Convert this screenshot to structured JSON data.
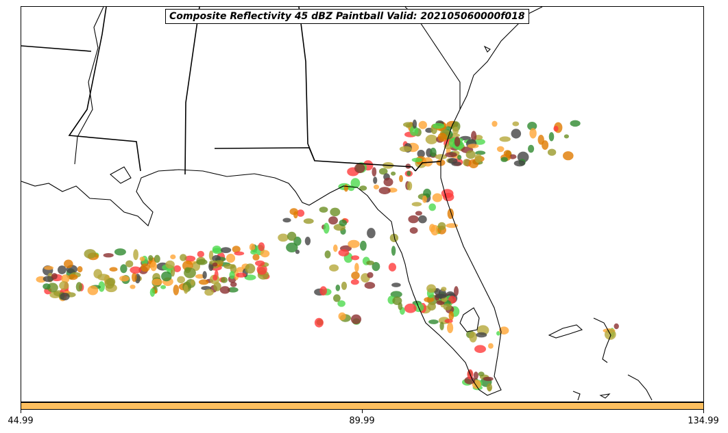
{
  "title": "Composite Reflectivity 45 dBZ Paintball Valid: 202105060000f018",
  "colorbar": {
    "color": "#fdbf5f",
    "ticks": [
      "44.99",
      "89.99",
      "134.99"
    ]
  },
  "map": {
    "features": [
      "state-boundaries",
      "coastlines",
      "florida-peninsula",
      "bahamas"
    ]
  },
  "member_colors": [
    "#ff3b3b",
    "#8b2f2f",
    "#ffa534",
    "#e07b00",
    "#b5a83a",
    "#9a9a2a",
    "#2f8a2f",
    "#4ed94e",
    "#444444",
    "#6b8e23"
  ]
}
